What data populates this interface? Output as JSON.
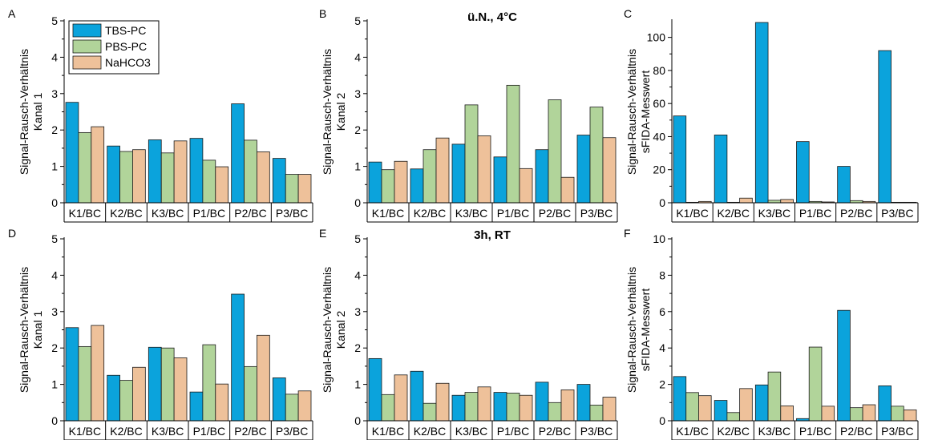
{
  "legend": {
    "entries": [
      {
        "label": "TBS-PC",
        "color": "#0ba3dc"
      },
      {
        "label": "PBS-PC",
        "color": "#b1d49a"
      },
      {
        "label": "NaHCO3",
        "color": "#eec19a"
      }
    ]
  },
  "chart_data": [
    {
      "panel": "A",
      "type": "bar",
      "title": "",
      "xlabel": "",
      "ylabel": [
        "Signal-Rausch-Verhältnis",
        "Kanal 1"
      ],
      "categories": [
        "K1/BC",
        "K2/BC",
        "K3/BC",
        "P1/BC",
        "P2/BC",
        "P3/BC"
      ],
      "ylim": [
        0,
        5
      ],
      "yticks": [
        0,
        1,
        2,
        3,
        4,
        5
      ],
      "series": [
        {
          "name": "TBS-PC",
          "values": [
            2.76,
            1.56,
            1.73,
            1.77,
            2.72,
            1.22
          ]
        },
        {
          "name": "PBS-PC",
          "values": [
            1.93,
            1.41,
            1.37,
            1.17,
            1.72,
            0.78
          ]
        },
        {
          "name": "NaHCO3",
          "values": [
            2.09,
            1.46,
            1.7,
            0.99,
            1.4,
            0.78
          ]
        }
      ]
    },
    {
      "panel": "B",
      "type": "bar",
      "title": "ü.N., 4°C",
      "xlabel": "",
      "ylabel": [
        "Signal-Rausch-Verhältnis",
        "Kanal 2"
      ],
      "categories": [
        "K1/BC",
        "K2/BC",
        "K3/BC",
        "P1/BC",
        "P2/BC",
        "P3/BC"
      ],
      "ylim": [
        0,
        5
      ],
      "yticks": [
        0,
        1,
        2,
        3,
        4,
        5
      ],
      "series": [
        {
          "name": "TBS-PC",
          "values": [
            1.12,
            0.93,
            1.61,
            1.26,
            1.46,
            1.86
          ]
        },
        {
          "name": "PBS-PC",
          "values": [
            0.91,
            1.46,
            2.69,
            3.23,
            2.83,
            2.63
          ]
        },
        {
          "name": "NaHCO3",
          "values": [
            1.14,
            1.78,
            1.84,
            0.94,
            0.7,
            1.79
          ]
        }
      ]
    },
    {
      "panel": "C",
      "type": "bar",
      "title": "",
      "xlabel": "",
      "ylabel": [
        "Signal-Rausch-Verhältnis",
        "sFIDA-Messwert"
      ],
      "categories": [
        "K1/BC",
        "K2/BC",
        "K3/BC",
        "P1/BC",
        "P2/BC",
        "P3/BC"
      ],
      "ylim": [
        0,
        110
      ],
      "yticks": [
        0,
        20,
        40,
        60,
        80,
        100
      ],
      "series": [
        {
          "name": "TBS-PC",
          "values": [
            52.5,
            41.0,
            109.0,
            37.0,
            22.0,
            92.0
          ]
        },
        {
          "name": "PBS-PC",
          "values": [
            0.3,
            0.3,
            1.5,
            0.8,
            1.3,
            0.3
          ]
        },
        {
          "name": "NaHCO3",
          "values": [
            0.8,
            2.8,
            2.0,
            0.5,
            0.8,
            0.3
          ]
        }
      ]
    },
    {
      "panel": "D",
      "type": "bar",
      "title": "",
      "xlabel": "",
      "ylabel": [
        "Signal-Rausch-Verhältnis",
        "Kanal 1"
      ],
      "categories": [
        "K1/BC",
        "K2/BC",
        "K3/BC",
        "P1/BC",
        "P2/BC",
        "P3/BC"
      ],
      "ylim": [
        0,
        5
      ],
      "yticks": [
        0,
        1,
        2,
        3,
        4,
        5
      ],
      "series": [
        {
          "name": "TBS-PC",
          "values": [
            2.56,
            1.25,
            2.02,
            0.79,
            3.48,
            1.18
          ]
        },
        {
          "name": "PBS-PC",
          "values": [
            2.04,
            1.11,
            2.0,
            2.09,
            1.49,
            0.73
          ]
        },
        {
          "name": "NaHCO3",
          "values": [
            2.62,
            1.47,
            1.73,
            1.01,
            2.35,
            0.82
          ]
        }
      ]
    },
    {
      "panel": "E",
      "type": "bar",
      "title": "3h, RT",
      "xlabel": "",
      "ylabel": [
        "Signal-Rausch-Verhältnis",
        "Kanal 2"
      ],
      "categories": [
        "K1/BC",
        "K2/BC",
        "K3/BC",
        "P1/BC",
        "P2/BC",
        "P3/BC"
      ],
      "ylim": [
        0,
        5
      ],
      "yticks": [
        0,
        1,
        2,
        3,
        4,
        5
      ],
      "series": [
        {
          "name": "TBS-PC",
          "values": [
            1.71,
            1.36,
            0.7,
            0.78,
            1.06,
            1.0
          ]
        },
        {
          "name": "PBS-PC",
          "values": [
            0.72,
            0.48,
            0.78,
            0.76,
            0.5,
            0.43
          ]
        },
        {
          "name": "NaHCO3",
          "values": [
            1.26,
            1.03,
            0.93,
            0.7,
            0.85,
            0.65
          ]
        }
      ]
    },
    {
      "panel": "F",
      "type": "bar",
      "title": "",
      "xlabel": "",
      "ylabel": [
        "Signal-Rausch-Verhältnis",
        "sFIDA-Messwert"
      ],
      "categories": [
        "K1/BC",
        "K2/BC",
        "K3/BC",
        "P1/BC",
        "P2/BC",
        "P3/BC"
      ],
      "ylim": [
        0,
        10
      ],
      "yticks": [
        0,
        2,
        4,
        6,
        8,
        10
      ],
      "series": [
        {
          "name": "TBS-PC",
          "values": [
            2.43,
            1.12,
            1.97,
            0.12,
            6.07,
            1.92
          ]
        },
        {
          "name": "PBS-PC",
          "values": [
            1.55,
            0.45,
            2.68,
            4.05,
            0.72,
            0.8
          ]
        },
        {
          "name": "NaHCO3",
          "values": [
            1.38,
            1.77,
            0.82,
            0.8,
            0.88,
            0.6
          ]
        }
      ]
    }
  ]
}
